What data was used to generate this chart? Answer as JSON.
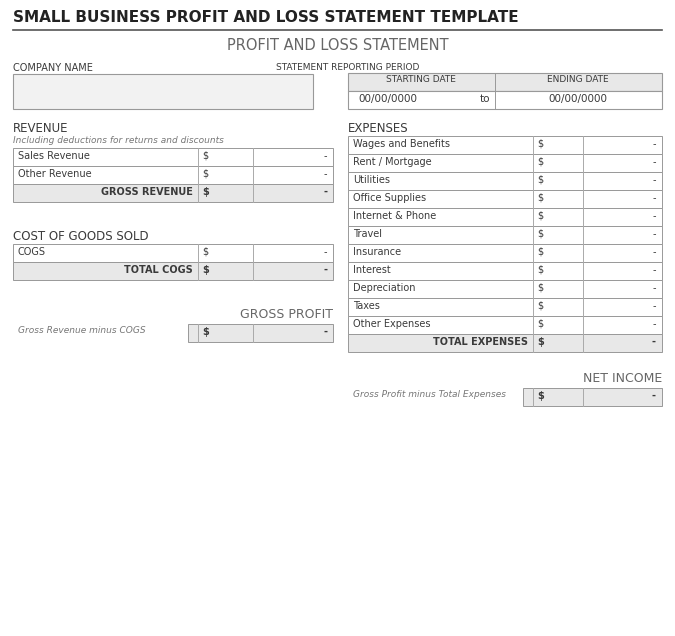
{
  "main_title": "SMALL BUSINESS PROFIT AND LOSS STATEMENT TEMPLATE",
  "subtitle": "PROFIT AND LOSS STATEMENT",
  "bg_color": "#ffffff",
  "company_label": "COMPANY NAME",
  "period_label": "STATEMENT REPORTING PERIOD",
  "starting_date_label": "STARTING DATE",
  "ending_date_label": "ENDING DATE",
  "date_placeholder": "00/00/0000",
  "to_text": "to",
  "revenue_label": "REVENUE",
  "revenue_subtitle": "Including deductions for returns and discounts",
  "revenue_rows": [
    "Sales Revenue",
    "Other Revenue"
  ],
  "gross_revenue_label": "GROSS REVENUE",
  "cogs_label": "COST OF GOODS SOLD",
  "cogs_row": "COGS",
  "total_cogs_label": "TOTAL COGS",
  "gross_profit_label": "GROSS PROFIT",
  "gross_profit_sub": "Gross Revenue minus COGS",
  "expenses_label": "EXPENSES",
  "expense_rows": [
    "Wages and Benefits",
    "Rent / Mortgage",
    "Utilities",
    "Office Supplies",
    "Internet & Phone",
    "Travel",
    "Insurance",
    "Interest",
    "Depreciation",
    "Taxes",
    "Other Expenses"
  ],
  "total_expenses_label": "TOTAL EXPENSES",
  "net_income_label": "NET INCOME",
  "net_income_sub": "Gross Profit minus Total Expenses",
  "dollar": "$",
  "dash": "-",
  "shaded_color": "#e8e8e8",
  "white_color": "#ffffff",
  "border_color": "#aaaaaa",
  "text_dark": "#3a3a3a",
  "text_gray": "#888888",
  "text_light": "#999999"
}
